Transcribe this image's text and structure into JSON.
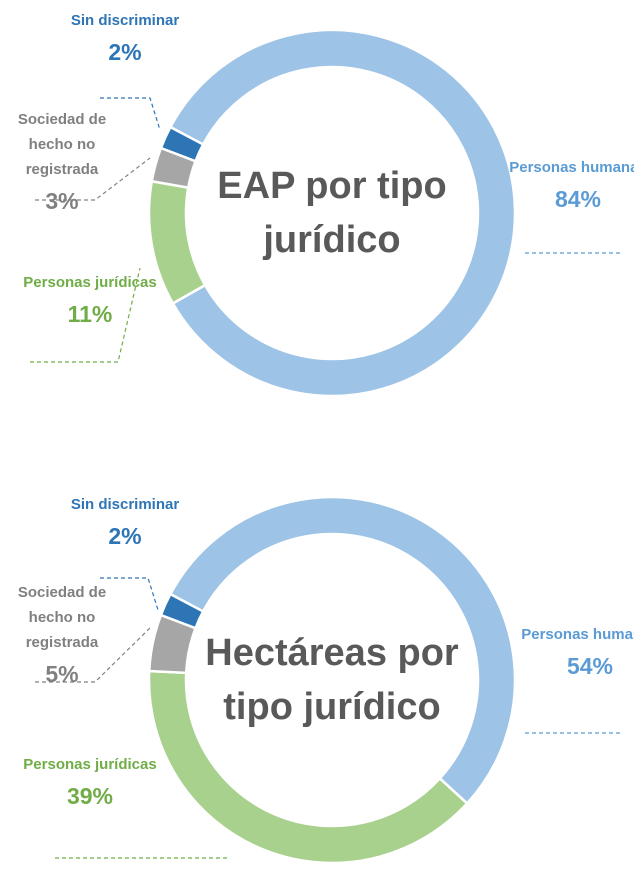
{
  "chart_data": [
    {
      "type": "donut",
      "title": "EAP por tipo jurídico",
      "categories": [
        "Personas humanas",
        "Personas jurídicas",
        "Sociedad de hecho no registrada",
        "Sin discriminar"
      ],
      "values": [
        84,
        11,
        3,
        2
      ],
      "value_labels": [
        "84%",
        "11%",
        "3%",
        "2%"
      ],
      "colors": [
        "#9dc3e6",
        "#a9d18e",
        "#a6a6a6",
        "#2e75b6"
      ],
      "label_colors": [
        "#5b9bd5",
        "#70ad47",
        "#808080",
        "#2e75b6"
      ]
    },
    {
      "type": "donut",
      "title": "Hectáreas por tipo jurídico",
      "categories": [
        "Personas humanas",
        "Personas jurídicas",
        "Sociedad de hecho no registrada",
        "Sin discriminar"
      ],
      "values": [
        54,
        39,
        5,
        2
      ],
      "value_labels": [
        "54%",
        "39%",
        "5%",
        "2%"
      ],
      "colors": [
        "#9dc3e6",
        "#a9d18e",
        "#a6a6a6",
        "#2e75b6"
      ],
      "label_colors": [
        "#5b9bd5",
        "#70ad47",
        "#808080",
        "#2e75b6"
      ]
    }
  ]
}
